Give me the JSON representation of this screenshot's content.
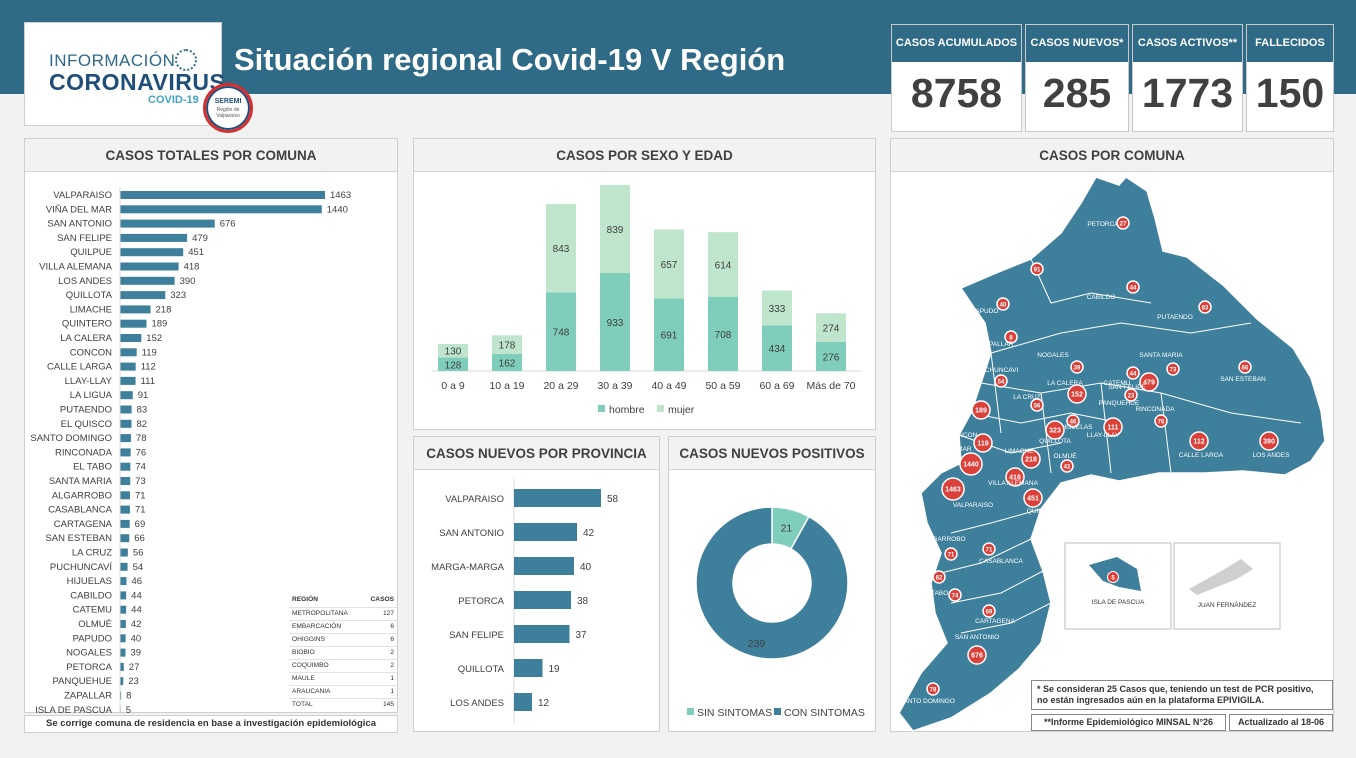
{
  "header": {
    "title": "Situación regional Covid-19 V Región",
    "logo_line1": "INFORMACIÓN",
    "logo_line2": "CORONAVIRUS",
    "logo_line3": "COVID-19",
    "seal_top": "SEREMI",
    "seal_bottom": "Región de Valparaíso"
  },
  "kpis": [
    {
      "label": "CASOS ACUMULADOS",
      "value": "8758"
    },
    {
      "label": "CASOS NUEVOS*",
      "value": "285"
    },
    {
      "label": "CASOS ACTIVOS**",
      "value": "1773"
    },
    {
      "label": "FALLECIDOS",
      "value": "150"
    }
  ],
  "colors": {
    "header_band": "#2f6a87",
    "bar": "#3e7f9c",
    "hombre": "#7fcdbb",
    "mujer": "#bfe5cd",
    "map_fill": "#3e7f9c",
    "marker": "#d9413a"
  },
  "comuna_panel": {
    "title": "CASOS TOTALES POR COMUNA",
    "footnote": "Se corrige comuna de residencia en base a investigación epidemiológica",
    "chart_data": {
      "type": "bar",
      "orientation": "horizontal",
      "categories": [
        "VALPARAISO",
        "VIÑA DEL MAR",
        "SAN ANTONIO",
        "SAN FELIPE",
        "QUILPUE",
        "VILLA ALEMANA",
        "LOS ANDES",
        "QUILLOTA",
        "LIMACHE",
        "QUINTERO",
        "LA CALERA",
        "CONCON",
        "CALLE LARGA",
        "LLAY-LLAY",
        "LA LIGUA",
        "PUTAENDO",
        "EL QUISCO",
        "SANTO DOMINGO",
        "RINCONADA",
        "EL TABO",
        "SANTA MARIA",
        "ALGARROBO",
        "CASABLANCA",
        "CARTAGENA",
        "SAN ESTEBAN",
        "LA CRUZ",
        "PUCHUNCAVÍ",
        "HIJUELAS",
        "CABILDO",
        "CATEMU",
        "OLMUÉ",
        "PAPUDO",
        "NOGALES",
        "PETORCA",
        "PANQUEHUE",
        "ZAPALLAR",
        "ISLA DE PASCUA"
      ],
      "values": [
        1463,
        1440,
        676,
        479,
        451,
        418,
        390,
        323,
        218,
        189,
        152,
        119,
        112,
        111,
        91,
        83,
        82,
        78,
        76,
        74,
        73,
        71,
        71,
        69,
        66,
        56,
        54,
        46,
        44,
        44,
        42,
        40,
        39,
        27,
        23,
        8,
        5
      ]
    },
    "region_table": {
      "col_region": "REGIÓN",
      "col_casos": "CASOS",
      "rows": [
        {
          "region": "METROPOLITANA",
          "casos": "127"
        },
        {
          "region": "EMBARCACIÓN",
          "casos": "6"
        },
        {
          "region": "OHIGGINS",
          "casos": "6"
        },
        {
          "region": "BIOBIO",
          "casos": "2"
        },
        {
          "region": "COQUIMBO",
          "casos": "2"
        },
        {
          "region": "MAULE",
          "casos": "1"
        },
        {
          "region": "ARAUCANIA",
          "casos": "1"
        },
        {
          "region": "TOTAL",
          "casos": "145"
        }
      ]
    }
  },
  "sexo_edad_panel": {
    "title": "CASOS POR SEXO Y EDAD",
    "chart_data": {
      "type": "bar",
      "stacked": true,
      "categories": [
        "0 a 9",
        "10 a 19",
        "20 a 29",
        "30 a 39",
        "40 a 49",
        "50 a 59",
        "60 a 69",
        "Más de 70"
      ],
      "series": [
        {
          "name": "hombre",
          "values": [
            128,
            162,
            748,
            933,
            691,
            708,
            434,
            276
          ]
        },
        {
          "name": "mujer",
          "values": [
            130,
            178,
            843,
            839,
            657,
            614,
            333,
            274
          ]
        }
      ],
      "legend": "bottom"
    }
  },
  "provincia_panel": {
    "title": "CASOS NUEVOS  POR PROVINCIA",
    "chart_data": {
      "type": "bar",
      "orientation": "horizontal",
      "categories": [
        "VALPARAISO",
        "SAN ANTONIO",
        "MARGA-MARGA",
        "PETORCA",
        "SAN FELIPE",
        "QUILLOTA",
        "LOS ANDES"
      ],
      "values": [
        58,
        42,
        40,
        38,
        37,
        19,
        12
      ]
    }
  },
  "positivos_panel": {
    "title": "CASOS NUEVOS POSITIVOS",
    "chart_data": {
      "type": "pie",
      "donut": true,
      "categories": [
        "SIN SINTOMAS",
        "CON SINTOMAS"
      ],
      "values": [
        21,
        239
      ],
      "legend": "bottom"
    }
  },
  "map_panel": {
    "title": "CASOS POR COMUNA",
    "places": [
      {
        "name": "PETORCA",
        "value": "27"
      },
      {
        "name": "LA LIGUA",
        "value": "91"
      },
      {
        "name": "CABILDO",
        "value": "44"
      },
      {
        "name": "PAPUDO",
        "value": "40"
      },
      {
        "name": "PUTAENDO",
        "value": "83"
      },
      {
        "name": "ZAPALLAR",
        "value": "8"
      },
      {
        "name": "NOGALES",
        "value": "39"
      },
      {
        "name": "SANTA MARIA",
        "value": "73"
      },
      {
        "name": "SAN ESTEBAN",
        "value": "66"
      },
      {
        "name": "PUCHUNCAVI",
        "value": "54"
      },
      {
        "name": "LA CALERA",
        "value": "152"
      },
      {
        "name": "CATEMU",
        "value": "44"
      },
      {
        "name": "SAN FELIPE",
        "value": "479"
      },
      {
        "name": "PANQUEHUE",
        "value": "23"
      },
      {
        "name": "LLAY-LLAY",
        "value": "111"
      },
      {
        "name": "RINCONADA",
        "value": "76"
      },
      {
        "name": "QUINTERO",
        "value": "189"
      },
      {
        "name": "LA CRUZ",
        "value": "56"
      },
      {
        "name": "HIJUELAS",
        "value": "46"
      },
      {
        "name": "CALLE LARGA",
        "value": "112"
      },
      {
        "name": "LOS ANDES",
        "value": "390"
      },
      {
        "name": "CONCON",
        "value": "119"
      },
      {
        "name": "QUILLOTA",
        "value": "323"
      },
      {
        "name": "VIÑA DEL MAR",
        "value": "1440"
      },
      {
        "name": "LIMACHE",
        "value": "218"
      },
      {
        "name": "OLMUÉ",
        "value": "42"
      },
      {
        "name": "VILLA ALEMANA",
        "value": "418"
      },
      {
        "name": "VALPARAISO",
        "value": "1463"
      },
      {
        "name": "QUILPUE",
        "value": "451"
      },
      {
        "name": "ALGARROBO",
        "value": "71"
      },
      {
        "name": "CASABLANCA",
        "value": "71"
      },
      {
        "name": "EL QUISCO",
        "value": "82"
      },
      {
        "name": "EL TABO",
        "value": "74"
      },
      {
        "name": "CARTAGENA",
        "value": "69"
      },
      {
        "name": "SAN ANTONIO",
        "value": "676"
      },
      {
        "name": "SANTO DOMINGO",
        "value": "78"
      },
      {
        "name": "ISLA DE PASCUA",
        "value": "5"
      },
      {
        "name": "JUAN FERNÁNDEZ",
        "value": ""
      }
    ],
    "note_line1": "* Se consideran 25 Casos que, teniendo un test de PCR positivo,",
    "note_line2": "no están ingresados aún en la plataforma EPIVIGILA.",
    "source": "**Informe Epidemiológico MINSAL N°26",
    "updated": "Actualizado al 18-06"
  }
}
